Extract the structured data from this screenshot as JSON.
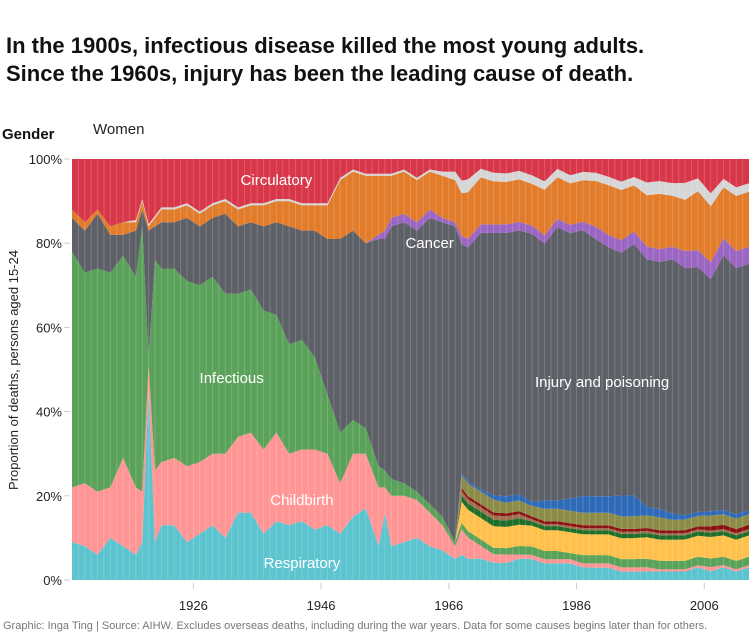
{
  "title_line1": "In the 1900s, infectious disease killed the most young adults.",
  "title_line2": "Since the 1960s, injury has been the leading cause of death.",
  "filter": {
    "label": "Gender",
    "value": "Women"
  },
  "footer": "Graphic: Inga Ting | Source: AIHW. Excludes overseas deaths, including during the war years. Data for some causes begins later than for others.",
  "chart_data": {
    "type": "area",
    "stacked": true,
    "normalized": true,
    "title": "",
    "xlabel": "",
    "ylabel": "Proportion of deaths, persons aged 15-24",
    "xlim": [
      1907,
      2013
    ],
    "ylim": [
      0,
      100
    ],
    "x_ticks": [
      1926,
      1946,
      1966,
      1986,
      2006
    ],
    "y_ticks": [
      0,
      20,
      40,
      60,
      80,
      100
    ],
    "y_tick_labels": [
      "0%",
      "20%",
      "40%",
      "60%",
      "80%",
      "100%"
    ],
    "grid": false,
    "x": [
      1907,
      1909,
      1911,
      1913,
      1915,
      1917,
      1918,
      1919,
      1920,
      1921,
      1923,
      1925,
      1927,
      1929,
      1931,
      1933,
      1935,
      1937,
      1939,
      1941,
      1943,
      1945,
      1947,
      1949,
      1951,
      1953,
      1955,
      1956,
      1957,
      1959,
      1961,
      1963,
      1965,
      1967,
      1968,
      1969,
      1971,
      1973,
      1975,
      1977,
      1979,
      1981,
      1983,
      1985,
      1987,
      1989,
      1991,
      1993,
      1995,
      1997,
      1999,
      2001,
      2003,
      2005,
      2007,
      2009,
      2011,
      2013
    ],
    "series": [
      {
        "name": "Respiratory",
        "label": "Respiratory",
        "color": "#5bc4cf",
        "values": [
          9,
          8,
          6,
          10,
          8,
          6,
          9,
          45,
          9,
          13,
          13,
          9,
          11,
          13,
          10,
          16,
          16,
          11,
          14,
          13,
          14,
          12,
          13,
          11,
          15,
          17,
          8,
          16,
          8,
          9,
          10,
          8,
          7,
          5,
          6,
          5,
          5,
          4,
          4,
          5,
          5,
          4,
          4,
          4,
          3,
          3,
          3,
          2,
          2,
          2,
          2,
          2,
          2,
          3,
          2,
          3,
          2,
          3
        ]
      },
      {
        "name": "Childbirth",
        "label": "Childbirth",
        "color": "#ff9595",
        "values": [
          13,
          15,
          15,
          12,
          21,
          16,
          12,
          6,
          17,
          15,
          16,
          18,
          17,
          17,
          20,
          18,
          19,
          20,
          21,
          17,
          17,
          19,
          17,
          12,
          15,
          13,
          14,
          6,
          12,
          11,
          9,
          8,
          6,
          3,
          6,
          5,
          3,
          2,
          2,
          1,
          1,
          1,
          1,
          1,
          1,
          1,
          1,
          1,
          1,
          1,
          0.5,
          0.5,
          0.5,
          0.5,
          1,
          0.5,
          0.5,
          0.5
        ]
      },
      {
        "name": "Infectious",
        "label": "Infectious",
        "color": "#5aa25a",
        "values": [
          56,
          50,
          53,
          51,
          48,
          50,
          63,
          2,
          50,
          46,
          45,
          44,
          42,
          42,
          38,
          34,
          34,
          33,
          28,
          26,
          26,
          22,
          14,
          12,
          8,
          6,
          5,
          4,
          4,
          3,
          2,
          2,
          2,
          1,
          1.5,
          1.5,
          1.5,
          1.5,
          1.5,
          2,
          2,
          2,
          2,
          1.5,
          2,
          2,
          2,
          2,
          2,
          2,
          2,
          2,
          2,
          2,
          2,
          2,
          2,
          2
        ]
      },
      {
        "name": "Other (yellow)",
        "label": "",
        "color": "#ffc04c",
        "values": [
          0,
          0,
          0,
          0,
          0,
          0,
          0,
          0,
          0,
          0,
          0,
          0,
          0,
          0,
          0,
          0,
          0,
          0,
          0,
          0,
          0,
          0,
          0,
          0,
          0,
          0,
          0,
          0,
          0,
          0,
          0,
          0,
          0,
          0,
          5,
          5,
          5,
          5,
          5,
          5,
          5,
          5,
          5,
          5,
          5,
          5,
          5,
          5,
          5,
          5,
          5,
          5,
          5,
          5,
          5,
          5,
          5,
          5
        ]
      },
      {
        "name": "Other (dark green)",
        "label": "",
        "color": "#1e6e2a",
        "values": [
          0,
          0,
          0,
          0,
          0,
          0,
          0,
          0,
          0,
          0,
          0,
          0,
          0,
          0,
          0,
          0,
          0,
          0,
          0,
          0,
          0,
          0,
          0,
          0,
          0,
          0,
          0,
          0,
          0,
          0,
          0,
          0,
          0,
          0,
          1.5,
          1.5,
          1.5,
          1.5,
          1.5,
          1.5,
          1,
          1,
          1,
          1,
          1,
          1,
          1,
          1,
          1,
          1,
          1,
          1,
          1,
          1,
          1,
          1,
          1,
          1
        ]
      },
      {
        "name": "Other (brown)",
        "label": "",
        "color": "#9c7150",
        "values": [
          0,
          0,
          0,
          0,
          0,
          0,
          0,
          0,
          0,
          0,
          0,
          0,
          0,
          0,
          0,
          0,
          0,
          0,
          0,
          0,
          0,
          0,
          0,
          0,
          0,
          0,
          0,
          0,
          0,
          0,
          0,
          0,
          0,
          0,
          1,
          1,
          1,
          1,
          1,
          1,
          0.5,
          0.5,
          0.5,
          0.5,
          0.5,
          0.5,
          0.5,
          0.5,
          0.5,
          0.5,
          0.5,
          0.5,
          0.5,
          0.5,
          0.5,
          0.5,
          0.5,
          0.5
        ]
      },
      {
        "name": "Other (dark red)",
        "label": "",
        "color": "#8b1010",
        "values": [
          0,
          0,
          0,
          0,
          0,
          0,
          0,
          0,
          0,
          0,
          0,
          0,
          0,
          0,
          0,
          0,
          0,
          0,
          0,
          0,
          0,
          0,
          0,
          0,
          0,
          0,
          0,
          0,
          0,
          0,
          0,
          0,
          0,
          0,
          0.7,
          0.7,
          0.7,
          0.7,
          0.7,
          0.7,
          0.7,
          0.7,
          0.7,
          0.7,
          0.7,
          0.7,
          0.7,
          0.7,
          0.7,
          0.7,
          0.7,
          0.7,
          0.7,
          0.7,
          1,
          1,
          1,
          1
        ]
      },
      {
        "name": "Other (olive)",
        "label": "",
        "color": "#8c8c48",
        "values": [
          0,
          0,
          0,
          0,
          0,
          0,
          0,
          0,
          0,
          0,
          0,
          0,
          0,
          0,
          0,
          0,
          0,
          0,
          0,
          0,
          0,
          0,
          0,
          0,
          0,
          0,
          0,
          0,
          0,
          0,
          0,
          0,
          0,
          0,
          3,
          3,
          3,
          3,
          2.5,
          2.5,
          2.5,
          3,
          3,
          3,
          3,
          3,
          3,
          3,
          3,
          3,
          3,
          2.5,
          2.5,
          2.5,
          2.5,
          2.5,
          2.5,
          2.5
        ]
      },
      {
        "name": "Other (blue)",
        "label": "",
        "color": "#2e6ab8",
        "values": [
          0,
          0,
          0,
          0,
          0,
          0,
          0,
          0,
          0,
          0,
          0,
          0,
          0,
          0,
          0,
          0,
          0,
          0,
          0,
          0,
          0,
          0,
          0,
          0,
          0,
          0,
          0,
          0,
          0,
          0,
          0,
          0,
          0,
          0,
          0.5,
          0.5,
          0.5,
          1,
          1.5,
          1.5,
          1,
          2,
          2,
          3,
          4,
          4,
          4,
          5,
          5,
          2,
          2,
          1.5,
          1,
          1,
          1,
          1,
          1,
          1
        ]
      },
      {
        "name": "Injury and poisoning",
        "label": "Injury and poisoning",
        "color": "#5e6068",
        "values": [
          8,
          10,
          13,
          9,
          5,
          11,
          4,
          30,
          8,
          11,
          11,
          15,
          14,
          14,
          19,
          16,
          16,
          20,
          22,
          28,
          26,
          30,
          37,
          46,
          45,
          44,
          54,
          55,
          60,
          62,
          62,
          68,
          70,
          75,
          54,
          55,
          60,
          61,
          62,
          62,
          64,
          62,
          66,
          64,
          64,
          62,
          60,
          58,
          60,
          58,
          58,
          60,
          58,
          58,
          54,
          60,
          58,
          58
        ]
      },
      {
        "name": "Other (purple)",
        "label": "",
        "color": "#9b65c2",
        "values": [
          0,
          0,
          0,
          0,
          0,
          0,
          0,
          0,
          0,
          0,
          0,
          0,
          0,
          0,
          0,
          0,
          0,
          0,
          0,
          0,
          0,
          0,
          0,
          0,
          0,
          0,
          1,
          2,
          2,
          2,
          2,
          2,
          1,
          1,
          2,
          2,
          2,
          2,
          2,
          2,
          2,
          2,
          2,
          2,
          2,
          3,
          3,
          3,
          3,
          3,
          3,
          3,
          4,
          4,
          4,
          4,
          4,
          4
        ]
      },
      {
        "name": "Cancer",
        "label": "Cancer",
        "color": "#e27c2b",
        "values": [
          2,
          2,
          1,
          2,
          3,
          2,
          2,
          1,
          2,
          3,
          3,
          3,
          3,
          3,
          3,
          4,
          4,
          5,
          5,
          6,
          6,
          6,
          8,
          14,
          14,
          16,
          14,
          13,
          10,
          10,
          10,
          9,
          10,
          10,
          10,
          11,
          11,
          10,
          10,
          10,
          10,
          11,
          10,
          10,
          10,
          11,
          12,
          12,
          11,
          12,
          13,
          12,
          12,
          14,
          13,
          12,
          13,
          13
        ]
      },
      {
        "name": "Other (light gray)",
        "label": "",
        "color": "#d6d6d6",
        "values": [
          0,
          0,
          0,
          0,
          0,
          0.5,
          0.5,
          0.5,
          0.5,
          0.5,
          0.5,
          0.5,
          0.5,
          0.5,
          0.5,
          0.5,
          0.5,
          0.5,
          0.5,
          0.5,
          0.5,
          0.5,
          0.5,
          0.5,
          0.5,
          0.5,
          0.5,
          0.5,
          0.5,
          0.5,
          0.5,
          0.5,
          1,
          2,
          3,
          3,
          2,
          2,
          2,
          2,
          2,
          2,
          2,
          2,
          2,
          2,
          2,
          2,
          2,
          3,
          3,
          3,
          4,
          3,
          3,
          2,
          2,
          2
        ]
      },
      {
        "name": "Circulatory",
        "label": "Circulatory",
        "color": "#d8374a",
        "values": [
          12,
          15,
          12,
          16,
          15,
          14.5,
          9.5,
          15.5,
          13.5,
          11.5,
          11.5,
          10.5,
          12.5,
          10.5,
          9.5,
          11.5,
          10.5,
          10.5,
          9.5,
          9.5,
          10.5,
          10.5,
          10.5,
          4.5,
          2.5,
          3.5,
          3.5,
          3.5,
          3.5,
          2.5,
          4.5,
          2.5,
          3,
          3,
          5.1,
          4.8,
          2.3,
          3.2,
          3.4,
          2.8,
          3.9,
          5.4,
          2.4,
          3.9,
          3.1,
          3.3,
          4.3,
          5.4,
          4.3,
          5.5,
          5.2,
          5.7,
          5.6,
          4.6,
          8,
          4.7,
          6.7,
          5.7
        ]
      }
    ],
    "annotations": [
      {
        "text": "Circulatory",
        "series": "Circulatory"
      },
      {
        "text": "Cancer",
        "series": "Cancer"
      },
      {
        "text": "Infectious",
        "series": "Infectious"
      },
      {
        "text": "Injury and poisoning",
        "series": "Injury and poisoning"
      },
      {
        "text": "Childbirth",
        "series": "Childbirth"
      },
      {
        "text": "Respiratory",
        "series": "Respiratory"
      }
    ]
  }
}
